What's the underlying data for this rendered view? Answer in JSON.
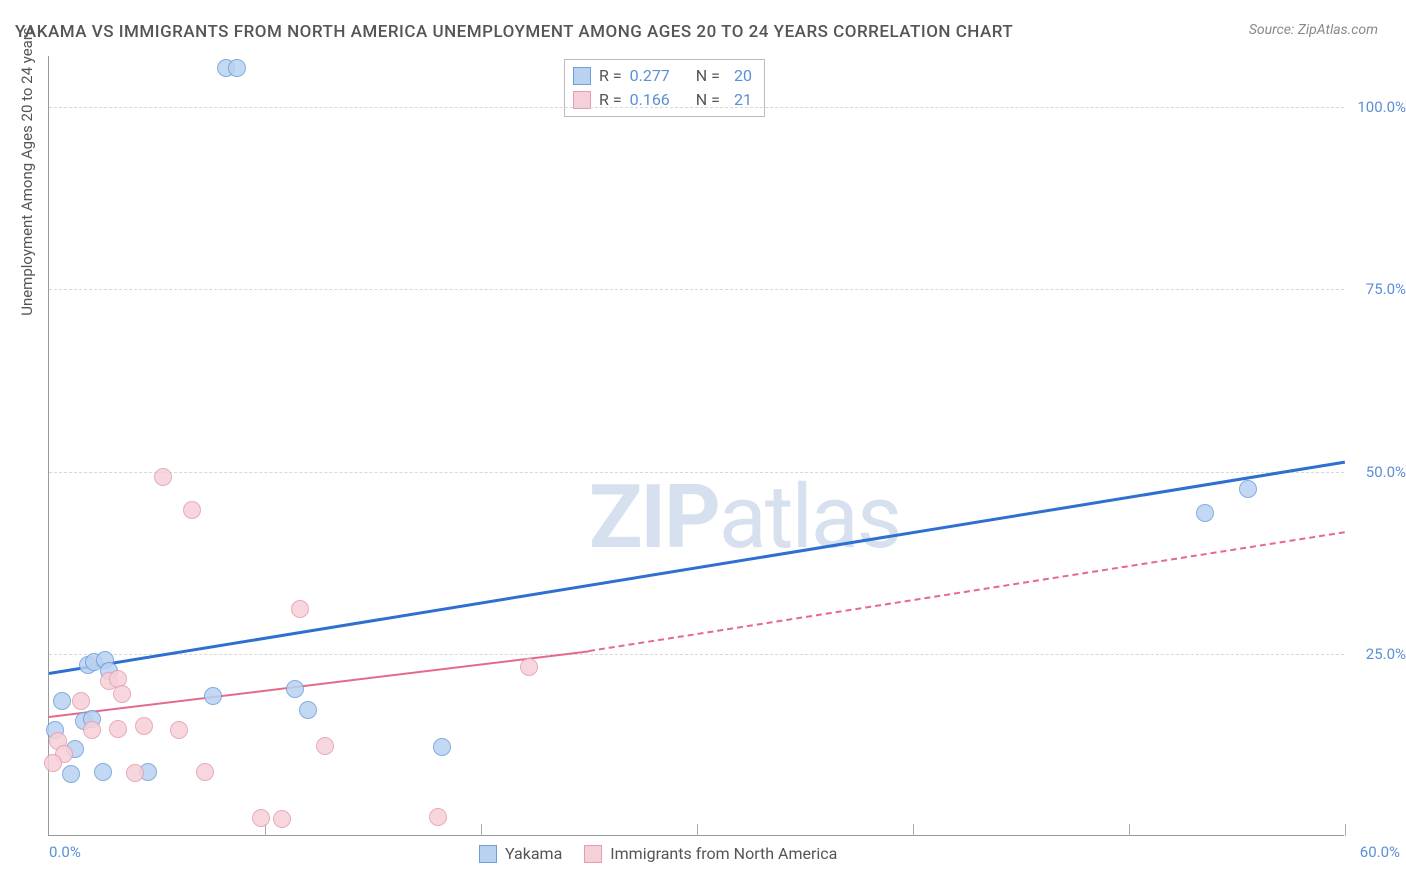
{
  "chart": {
    "type": "scatter",
    "title": "YAKAMA VS IMMIGRANTS FROM NORTH AMERICA UNEMPLOYMENT AMONG AGES 20 TO 24 YEARS CORRELATION CHART",
    "source": "Source: ZipAtlas.com",
    "yaxis_title": "Unemployment Among Ages 20 to 24 years",
    "watermark_bold": "ZIP",
    "watermark_light": "atlas",
    "background_color": "#ffffff",
    "grid_color_h": "#d8d8d8",
    "grid_color_v": "#e8e8e8",
    "axis_color": "#999999",
    "label_color": "#5b8fd6",
    "text_color": "#555555",
    "xlim": [
      0,
      60
    ],
    "ylim": [
      0,
      107
    ],
    "xtick_labels": {
      "0": "0.0%",
      "60": "60.0%"
    },
    "xtick_positions": [
      0,
      10,
      20,
      30,
      40,
      50,
      60
    ],
    "ytick_labels": {
      "25": "25.0%",
      "50": "50.0%",
      "75": "75.0%",
      "100": "100.0%"
    },
    "ytick_positions": [
      25,
      50,
      75,
      100
    ],
    "series": [
      {
        "name": "Yakama",
        "fill_color": "#b9d2f0",
        "stroke_color": "#6f9fd8",
        "trend_color": "#2e6fd0",
        "trend_width": 3,
        "trend_dash": "solid",
        "marker_radius": 9,
        "R": "0.277",
        "N": "20",
        "points": [
          [
            0.3,
            14.5
          ],
          [
            0.6,
            18.5
          ],
          [
            1.0,
            8.5
          ],
          [
            1.2,
            12.0
          ],
          [
            1.6,
            15.8
          ],
          [
            1.8,
            23.4
          ],
          [
            2.1,
            23.9
          ],
          [
            2.6,
            24.2
          ],
          [
            2.5,
            8.8
          ],
          [
            2.8,
            22.6
          ],
          [
            4.6,
            8.8
          ],
          [
            7.6,
            19.2
          ],
          [
            8.2,
            105.3
          ],
          [
            8.7,
            105.3
          ],
          [
            11.4,
            20.2
          ],
          [
            12.0,
            17.3
          ],
          [
            18.2,
            12.2
          ],
          [
            53.5,
            44.3
          ],
          [
            55.5,
            47.6
          ],
          [
            2.0,
            16.0
          ]
        ],
        "trend_from": [
          0,
          22.5
        ],
        "trend_to": [
          60,
          51.5
        ]
      },
      {
        "name": "Immigrants from North America",
        "fill_color": "#f6d0d9",
        "stroke_color": "#e79cb0",
        "trend_color": "#e56a8a",
        "trend_width": 2,
        "trend_dash": "solid-then-dashed",
        "marker_radius": 9,
        "R": "0.166",
        "N": "21",
        "points": [
          [
            0.4,
            13.0
          ],
          [
            0.7,
            11.2
          ],
          [
            0.2,
            10.0
          ],
          [
            1.5,
            18.5
          ],
          [
            2.0,
            14.5
          ],
          [
            2.8,
            21.2
          ],
          [
            3.2,
            14.7
          ],
          [
            3.2,
            21.5
          ],
          [
            3.4,
            19.5
          ],
          [
            4.0,
            8.6
          ],
          [
            4.4,
            15.1
          ],
          [
            5.3,
            49.3
          ],
          [
            6.0,
            14.5
          ],
          [
            6.6,
            44.7
          ],
          [
            7.2,
            8.8
          ],
          [
            9.8,
            2.5
          ],
          [
            10.8,
            2.4
          ],
          [
            11.6,
            31.2
          ],
          [
            12.8,
            12.4
          ],
          [
            18.0,
            2.6
          ],
          [
            22.2,
            23.2
          ]
        ],
        "trend_from": [
          0,
          16.5
        ],
        "trend_to_solid": [
          25,
          25.5
        ],
        "trend_to": [
          60,
          41.8
        ]
      }
    ],
    "stats_box": {
      "rows": [
        {
          "swatch_fill": "#b9d2f0",
          "swatch_stroke": "#6f9fd8",
          "r_label": "R =",
          "r_val": "0.277",
          "n_label": "N =",
          "n_val": "20"
        },
        {
          "swatch_fill": "#f6d0d9",
          "swatch_stroke": "#e79cb0",
          "r_label": "R =",
          "r_val": "0.166",
          "n_label": "N =",
          "n_val": "21"
        }
      ]
    },
    "legend": [
      {
        "swatch_fill": "#b9d2f0",
        "swatch_stroke": "#6f9fd8",
        "label": "Yakama"
      },
      {
        "swatch_fill": "#f6d0d9",
        "swatch_stroke": "#e79cb0",
        "label": "Immigrants from North America"
      }
    ]
  }
}
